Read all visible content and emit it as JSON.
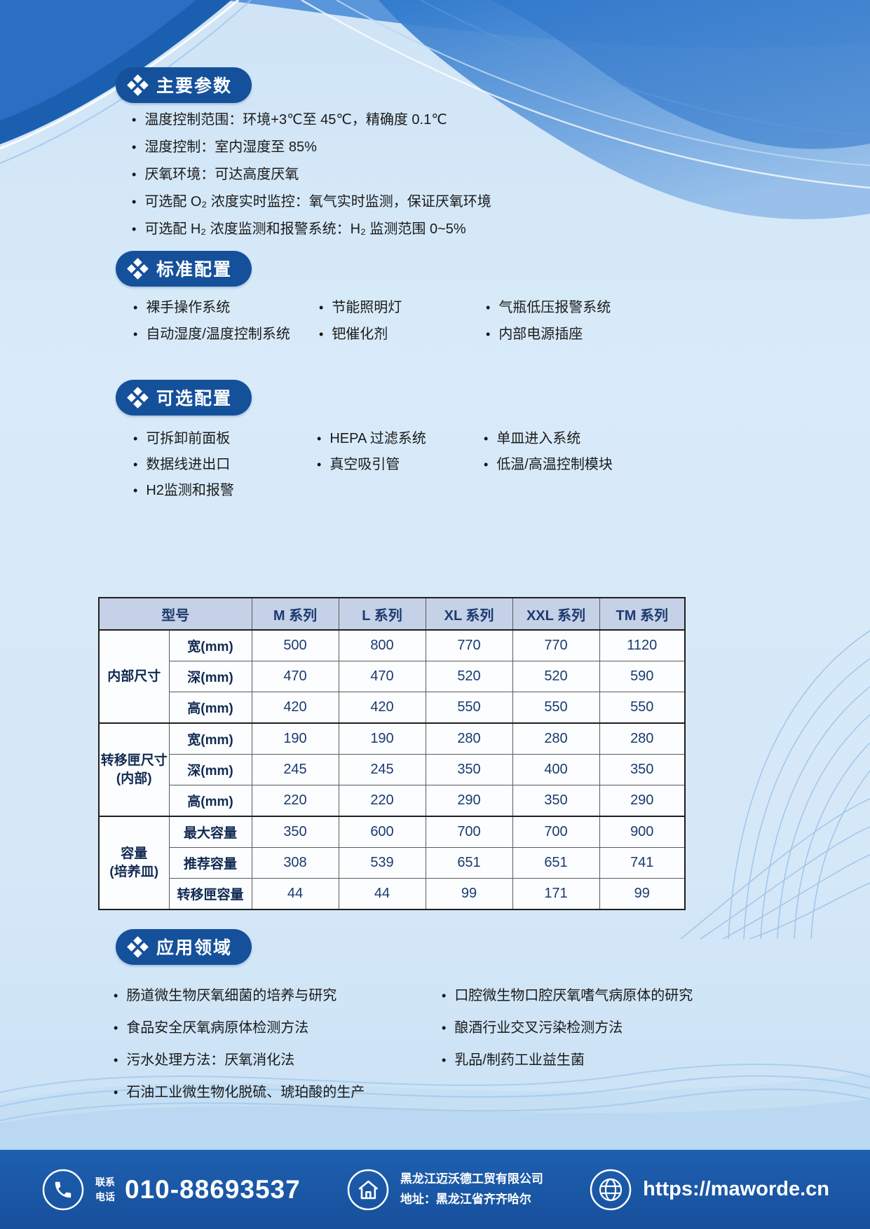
{
  "colors": {
    "accent": "#15509b",
    "footer_bg": "#1a57a8",
    "table_header_bg": "#c5d1e7",
    "table_text": "#1b3a6e",
    "page_bg": "#d9ebf9"
  },
  "sections": {
    "main_params": {
      "title": "主要参数",
      "items": [
        "温度控制范围：环境+3℃至 45℃，精确度 0.1℃",
        "湿度控制：室内湿度至 85%",
        "厌氧环境：可达高度厌氧",
        "可选配 O₂ 浓度实时监控：氧气实时监测，保证厌氧环境",
        "可选配 H₂ 浓度监测和报警系统：H₂ 监测范围 0~5%"
      ]
    },
    "standard_config": {
      "title": "标准配置",
      "items": [
        "裸手操作系统",
        "节能照明灯",
        "气瓶低压报警系统",
        "自动湿度/温度控制系统",
        "钯催化剂",
        "内部电源插座"
      ]
    },
    "optional_config": {
      "title": "可选配置",
      "items": [
        "可拆卸前面板",
        "HEPA 过滤系统",
        "单皿进入系统",
        "数据线进出口",
        "真空吸引管",
        "低温/高温控制模块",
        "H2监测和报警"
      ]
    },
    "applications": {
      "title": "应用领域",
      "items_left": [
        "肠道微生物厌氧细菌的培养与研究",
        "食品安全厌氧病原体检测方法",
        "污水处理方法：厌氧消化法",
        "石油工业微生物化脱硫、琥珀酸的生产"
      ],
      "items_right": [
        "口腔微生物口腔厌氧嗜气病原体的研究",
        "酿酒行业交叉污染检测方法",
        "乳品/制药工业益生菌"
      ]
    }
  },
  "table": {
    "columns": [
      "型号",
      "M 系列",
      "L 系列",
      "XL 系列",
      "XXL 系列",
      "TM 系列"
    ],
    "groups": [
      {
        "label": "内部尺寸",
        "rows": [
          {
            "label": "宽(mm)",
            "values": [
              500,
              800,
              770,
              770,
              1120
            ]
          },
          {
            "label": "深(mm)",
            "values": [
              470,
              470,
              520,
              520,
              590
            ]
          },
          {
            "label": "高(mm)",
            "values": [
              420,
              420,
              550,
              550,
              550
            ]
          }
        ]
      },
      {
        "label": "转移匣尺寸\n(内部)",
        "rows": [
          {
            "label": "宽(mm)",
            "values": [
              190,
              190,
              280,
              280,
              280
            ]
          },
          {
            "label": "深(mm)",
            "values": [
              245,
              245,
              350,
              400,
              350
            ]
          },
          {
            "label": "高(mm)",
            "values": [
              220,
              220,
              290,
              350,
              290
            ]
          }
        ]
      },
      {
        "label": "容量\n(培养皿)",
        "rows": [
          {
            "label": "最大容量",
            "values": [
              350,
              600,
              700,
              700,
              900
            ]
          },
          {
            "label": "推荐容量",
            "values": [
              308,
              539,
              651,
              651,
              741
            ]
          },
          {
            "label": "转移匣容量",
            "values": [
              44,
              44,
              99,
              171,
              99
            ]
          }
        ]
      }
    ]
  },
  "footer": {
    "phone_label_line1": "联系",
    "phone_label_line2": "电话",
    "phone": "010-88693537",
    "company": "黑龙江迈沃德工贸有限公司",
    "address": "地址：黑龙江省齐齐哈尔",
    "website": "https://maworde.cn"
  }
}
